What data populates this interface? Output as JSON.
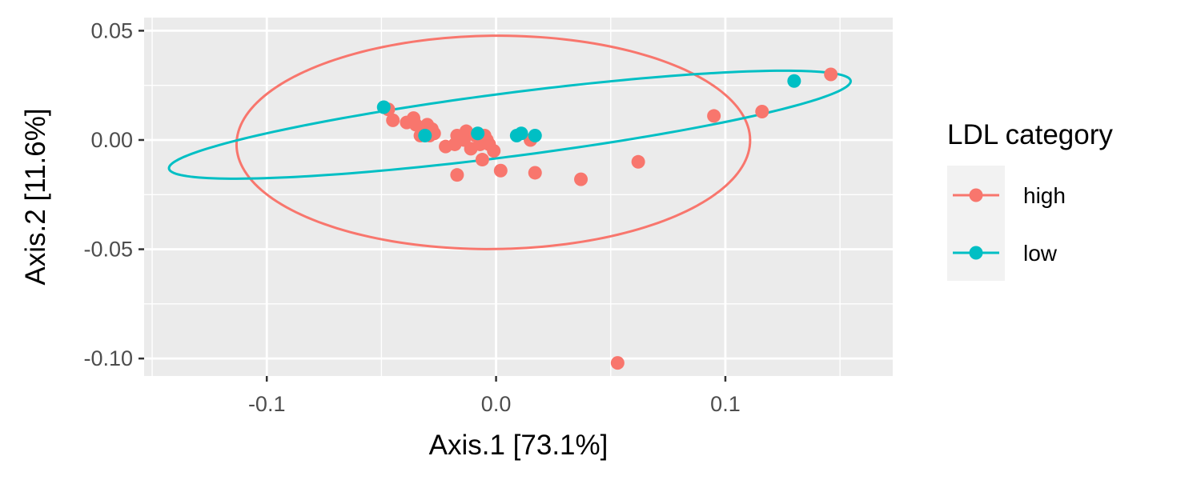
{
  "chart_data": {
    "type": "scatter",
    "xlabel": "Axis.1   [73.1%]",
    "ylabel": "Axis.2   [11.6%]",
    "xlim": [
      -0.1535,
      0.173
    ],
    "ylim": [
      -0.108,
      0.056
    ],
    "x_ticks": [
      {
        "value": -0.1,
        "label": "-0.1"
      },
      {
        "value": 0.0,
        "label": "0.0"
      },
      {
        "value": 0.1,
        "label": "0.1"
      }
    ],
    "y_ticks": [
      {
        "value": 0.05,
        "label": "0.05"
      },
      {
        "value": 0.0,
        "label": "0.00"
      },
      {
        "value": -0.05,
        "label": "-0.05"
      },
      {
        "value": -0.1,
        "label": "-0.10"
      }
    ],
    "grid": true,
    "legend": {
      "title": "LDL category",
      "position": "right"
    },
    "series": [
      {
        "name": "high",
        "color": "#F8766D",
        "ellipse": {
          "cx": -0.0012,
          "cy": -0.0011,
          "rx": 0.112,
          "ry": 0.0488,
          "angle_deg": 0.6
        },
        "points": [
          {
            "x": -0.047,
            "y": 0.014
          },
          {
            "x": -0.045,
            "y": 0.009
          },
          {
            "x": -0.039,
            "y": 0.008
          },
          {
            "x": -0.036,
            "y": 0.01
          },
          {
            "x": -0.035,
            "y": 0.007
          },
          {
            "x": -0.033,
            "y": 0.002
          },
          {
            "x": -0.032,
            "y": 0.005
          },
          {
            "x": -0.03,
            "y": 0.007
          },
          {
            "x": -0.03,
            "y": 0.003
          },
          {
            "x": -0.029,
            "y": 0.002
          },
          {
            "x": -0.028,
            "y": 0.005
          },
          {
            "x": -0.027,
            "y": 0.003
          },
          {
            "x": -0.022,
            "y": -0.003
          },
          {
            "x": -0.018,
            "y": -0.002
          },
          {
            "x": -0.017,
            "y": 0.002
          },
          {
            "x": -0.017,
            "y": -0.016
          },
          {
            "x": -0.014,
            "y": 0.0
          },
          {
            "x": -0.013,
            "y": 0.004
          },
          {
            "x": -0.011,
            "y": -0.004
          },
          {
            "x": -0.009,
            "y": 0.002
          },
          {
            "x": -0.007,
            "y": -0.002
          },
          {
            "x": -0.006,
            "y": -0.009
          },
          {
            "x": -0.005,
            "y": 0.002
          },
          {
            "x": -0.004,
            "y": 0.0
          },
          {
            "x": -0.003,
            "y": -0.002
          },
          {
            "x": -0.001,
            "y": -0.005
          },
          {
            "x": 0.002,
            "y": -0.014
          },
          {
            "x": 0.015,
            "y": 0.0
          },
          {
            "x": 0.017,
            "y": -0.015
          },
          {
            "x": 0.037,
            "y": -0.018
          },
          {
            "x": 0.062,
            "y": -0.01
          },
          {
            "x": 0.095,
            "y": 0.011
          },
          {
            "x": 0.116,
            "y": 0.013
          },
          {
            "x": 0.146,
            "y": 0.03
          },
          {
            "x": 0.053,
            "y": -0.102
          }
        ]
      },
      {
        "name": "low",
        "color": "#00BFC4",
        "ellipse": {
          "cx": 0.006,
          "cy": 0.007,
          "rx": 0.15,
          "ry": 0.0145,
          "angle_deg": 7.7
        },
        "points": [
          {
            "x": -0.049,
            "y": 0.015
          },
          {
            "x": -0.031,
            "y": 0.002
          },
          {
            "x": -0.008,
            "y": 0.003
          },
          {
            "x": 0.009,
            "y": 0.002
          },
          {
            "x": 0.011,
            "y": 0.003
          },
          {
            "x": 0.017,
            "y": 0.002
          },
          {
            "x": 0.13,
            "y": 0.027
          }
        ]
      }
    ]
  }
}
